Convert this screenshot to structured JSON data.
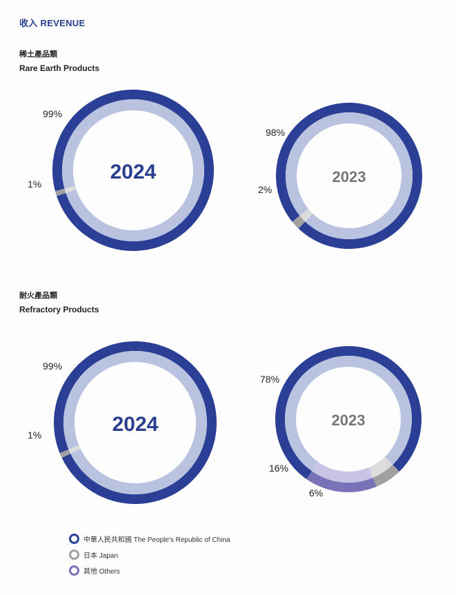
{
  "header": {
    "title": "收入 REVENUE"
  },
  "sections": [
    {
      "title_zh": "稀土產品類",
      "title_en": "Rare Earth Products"
    },
    {
      "title_zh": "耐火產品類",
      "title_en": "Refractory Products"
    }
  ],
  "colors": {
    "china": "#2a3f95",
    "china_inner": "#b9c3e0",
    "japan": "#a0a0a0",
    "japan_inner": "#dcdcdc",
    "others": "#7a72b8",
    "others_inner": "#c9c4e4",
    "year_current": "#2a3f8f",
    "year_previous": "#777777"
  },
  "chart_data": [
    {
      "type": "pie",
      "section": "Rare Earth Products",
      "center_label": "2024",
      "slices": [
        {
          "name": "中華人民共和國 The People's Republic of China",
          "value": 99,
          "label": "99%"
        },
        {
          "name": "日本 Japan",
          "value": 1,
          "label": "1%"
        }
      ]
    },
    {
      "type": "pie",
      "section": "Rare Earth Products",
      "center_label": "2023",
      "slices": [
        {
          "name": "中華人民共和國 The People's Republic of China",
          "value": 98,
          "label": "98%"
        },
        {
          "name": "日本 Japan",
          "value": 2,
          "label": "2%"
        }
      ]
    },
    {
      "type": "pie",
      "section": "Refractory Products",
      "center_label": "2024",
      "slices": [
        {
          "name": "中華人民共和國 The People's Republic of China",
          "value": 99,
          "label": "99%"
        },
        {
          "name": "日本 Japan",
          "value": 1,
          "label": "1%"
        }
      ]
    },
    {
      "type": "pie",
      "section": "Refractory Products",
      "center_label": "2023",
      "slices": [
        {
          "name": "中華人民共和國 The People's Republic of China",
          "value": 78,
          "label": "78%"
        },
        {
          "name": "日本 Japan",
          "value": 6,
          "label": "6%"
        },
        {
          "name": "其他 Others",
          "value": 16,
          "label": "16%"
        }
      ]
    }
  ],
  "legend": [
    {
      "label": "中華人民共和國 The People's Republic of China",
      "key": "china"
    },
    {
      "label": "日本 Japan",
      "key": "japan"
    },
    {
      "label": "其他 Others",
      "key": "others"
    }
  ]
}
